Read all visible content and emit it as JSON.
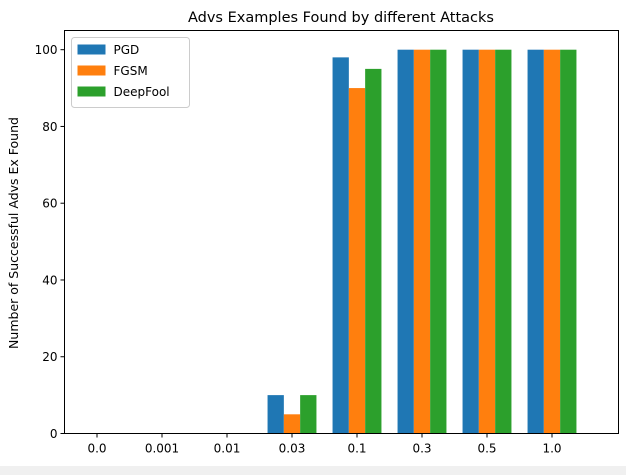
{
  "chart_data": {
    "type": "bar",
    "title": "Advs Examples Found by different Attacks",
    "xlabel": "",
    "ylabel": "Number of Successful Advs Ex Found",
    "categories": [
      "0.0",
      "0.001",
      "0.01",
      "0.03",
      "0.1",
      "0.3",
      "0.5",
      "1.0"
    ],
    "series": [
      {
        "name": "PGD",
        "color": "#1f77b4",
        "values": [
          0,
          0,
          0,
          10,
          98,
          100,
          100,
          100
        ]
      },
      {
        "name": "FGSM",
        "color": "#ff7f0e",
        "values": [
          0,
          0,
          0,
          5,
          90,
          100,
          100,
          100
        ]
      },
      {
        "name": "DeepFool",
        "color": "#2ca02c",
        "values": [
          0,
          0,
          0,
          10,
          95,
          100,
          100,
          100
        ]
      }
    ],
    "ylim": [
      0,
      105
    ],
    "yticks": [
      0,
      20,
      40,
      60,
      80,
      100
    ],
    "grid": false,
    "legend": {
      "position": "top-left"
    }
  }
}
